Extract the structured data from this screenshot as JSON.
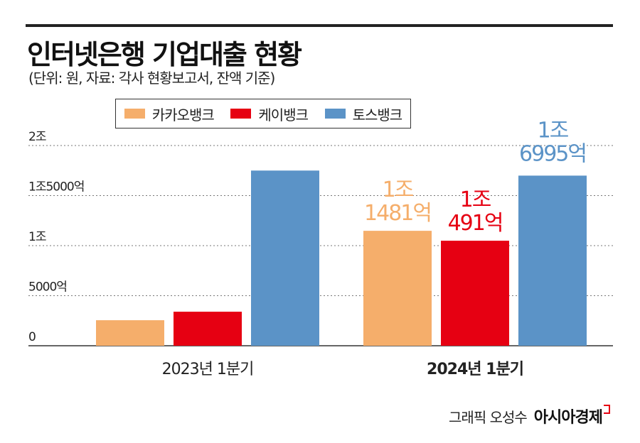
{
  "title": "인터넷은행 기업대출 현황",
  "subtitle": "(단위: 원, 자료: 각사 현황보고서, 잔액 기준)",
  "credit": {
    "author": "그래픽 오성수",
    "logo": "아시아경제"
  },
  "chart_data": {
    "type": "bar",
    "categories": [
      "2023년 1분기",
      "2024년 1분기"
    ],
    "series": [
      {
        "name": "카카오뱅크",
        "color": "#f5ae6b",
        "values": [
          2550,
          11481
        ]
      },
      {
        "name": "케이뱅크",
        "color": "#e60012",
        "values": [
          3400,
          10491
        ]
      },
      {
        "name": "토스뱅크",
        "color": "#5b93c7",
        "values": [
          17500,
          16995
        ]
      }
    ],
    "data_labels": [
      [
        null,
        [
          "1조",
          "1481억"
        ]
      ],
      [
        null,
        [
          "1조",
          "491억"
        ]
      ],
      [
        null,
        [
          "1조",
          "6995억"
        ]
      ]
    ],
    "yticks": [
      {
        "value": 0,
        "label": "0"
      },
      {
        "value": 5000,
        "label": "5000억"
      },
      {
        "value": 10000,
        "label": "1조"
      },
      {
        "value": 15000,
        "label": "1조5000억"
      },
      {
        "value": 20000,
        "label": "2조"
      }
    ],
    "ylim": [
      0,
      20000
    ],
    "grid": true,
    "legend": "top-center"
  }
}
